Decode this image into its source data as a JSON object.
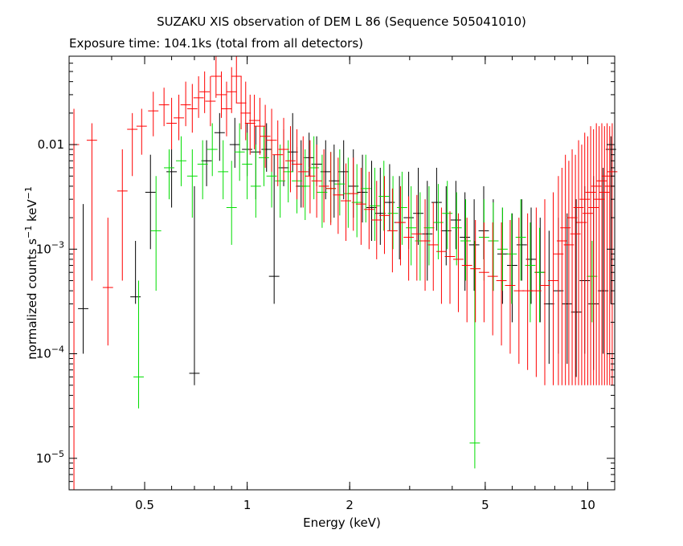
{
  "chart_data": {
    "type": "scatter",
    "title": "SUZAKU XIS observation of DEM L 86 (Sequence 505041010)",
    "subtitle": "Exposure time: 104.1ks (total from all detectors)",
    "xlabel": "Energy (keV)",
    "ylabel_main": "normalized counts s",
    "ylabel_mid": " keV",
    "ylabel_sup": "−1",
    "xscale": "log",
    "yscale": "log",
    "xlim": [
      0.3,
      12
    ],
    "ylim": [
      5e-06,
      0.07
    ],
    "x_ticks": [
      {
        "value": 0.5,
        "label": "0.5"
      },
      {
        "value": 1,
        "label": "1"
      },
      {
        "value": 2,
        "label": "2"
      },
      {
        "value": 5,
        "label": "5"
      },
      {
        "value": 10,
        "label": "10"
      }
    ],
    "y_ticks": [
      {
        "value": 0.01,
        "label": "0.01"
      },
      {
        "value": 0.001,
        "label": "10",
        "exp": "−3"
      },
      {
        "value": 0.0001,
        "label": "10",
        "exp": "−4"
      },
      {
        "value": 1e-05,
        "label": "10",
        "exp": "−5"
      }
    ],
    "series": [
      {
        "color": "#000000",
        "points": [
          [
            0.33,
            0.00027,
            0.0027,
            0.0001
          ],
          [
            0.47,
            0.00035,
            0.0012,
            0.0003
          ],
          [
            0.52,
            0.0035,
            0.008,
            0.001
          ],
          [
            0.6,
            0.0055,
            0.009,
            0.0025
          ],
          [
            0.7,
            6.5e-05,
            0.004,
            5e-05
          ],
          [
            0.76,
            0.007,
            0.011,
            0.004
          ],
          [
            0.83,
            0.013,
            0.02,
            0.007
          ],
          [
            0.92,
            0.01,
            0.018,
            0.006
          ],
          [
            1.0,
            0.009,
            0.016,
            0.005
          ],
          [
            1.06,
            0.0085,
            0.015,
            0.003
          ],
          [
            1.14,
            0.009,
            0.016,
            0.0055
          ],
          [
            1.2,
            0.00055,
            0.008,
            0.0003
          ],
          [
            1.28,
            0.006,
            0.014,
            0.004
          ],
          [
            1.36,
            0.0085,
            0.02,
            0.0055
          ],
          [
            1.44,
            0.004,
            0.011,
            0.0025
          ],
          [
            1.52,
            0.0075,
            0.013,
            0.005
          ],
          [
            1.6,
            0.0065,
            0.012,
            0.004
          ],
          [
            1.7,
            0.0055,
            0.011,
            0.003
          ],
          [
            1.8,
            0.0045,
            0.01,
            0.002
          ],
          [
            1.92,
            0.0055,
            0.011,
            0.003
          ],
          [
            2.05,
            0.004,
            0.009,
            0.002
          ],
          [
            2.18,
            0.0035,
            0.008,
            0.0018
          ],
          [
            2.32,
            0.0025,
            0.007,
            0.0012
          ],
          [
            2.46,
            0.0022,
            0.006,
            0.0011
          ],
          [
            2.62,
            0.0028,
            0.0065,
            0.0015
          ],
          [
            2.8,
            0.0018,
            0.005,
            0.0008
          ],
          [
            2.98,
            0.002,
            0.0055,
            0.001
          ],
          [
            3.18,
            0.0022,
            0.006,
            0.0011
          ],
          [
            3.38,
            0.0014,
            0.0045,
            0.0005
          ],
          [
            3.6,
            0.0028,
            0.006,
            0.0015
          ],
          [
            3.84,
            0.0015,
            0.004,
            0.0007
          ],
          [
            4.1,
            0.0019,
            0.0045,
            0.001
          ],
          [
            4.36,
            0.0013,
            0.0035,
            0.0004
          ],
          [
            4.64,
            0.0011,
            0.003,
            0.0004
          ],
          [
            4.95,
            0.0015,
            0.004,
            0.0008
          ],
          [
            5.28,
            0.0012,
            0.003,
            0.0004
          ],
          [
            5.62,
            0.0009,
            0.0025,
            0.0003
          ],
          [
            6.0,
            0.0007,
            0.0022,
            0.0002
          ],
          [
            6.4,
            0.0011,
            0.003,
            0.0005
          ],
          [
            6.82,
            0.0008,
            0.0025,
            0.0003
          ],
          [
            7.25,
            0.0006,
            0.002,
            0.0002
          ],
          [
            7.7,
            0.0003,
            0.0015,
            8e-05
          ],
          [
            8.2,
            0.0004,
            0.002,
            0.0001
          ],
          [
            8.7,
            0.0003,
            0.0022,
            8e-05
          ],
          [
            9.25,
            0.00025,
            0.003,
            6e-05
          ],
          [
            9.8,
            0.0005,
            0.004,
            0.0001
          ],
          [
            10.4,
            0.0003,
            0.005,
            7e-05
          ],
          [
            11.1,
            0.0004,
            0.006,
            0.0001
          ],
          [
            11.7,
            0.009,
            0.012,
            0.0003
          ]
        ]
      },
      {
        "color": "#00dd00",
        "points": [
          [
            0.48,
            6e-05,
            0.0005,
            3e-05
          ],
          [
            0.54,
            0.0015,
            0.005,
            0.0004
          ],
          [
            0.59,
            0.006,
            0.009,
            0.003
          ],
          [
            0.64,
            0.007,
            0.012,
            0.004
          ],
          [
            0.69,
            0.005,
            0.009,
            0.002
          ],
          [
            0.74,
            0.0065,
            0.011,
            0.003
          ],
          [
            0.79,
            0.009,
            0.016,
            0.005
          ],
          [
            0.85,
            0.0055,
            0.011,
            0.003
          ],
          [
            0.9,
            0.0025,
            0.007,
            0.0011
          ],
          [
            0.95,
            0.0085,
            0.016,
            0.0045
          ],
          [
            1.0,
            0.0065,
            0.013,
            0.003
          ],
          [
            1.06,
            0.004,
            0.01,
            0.002
          ],
          [
            1.12,
            0.0075,
            0.015,
            0.004
          ],
          [
            1.18,
            0.005,
            0.011,
            0.0025
          ],
          [
            1.25,
            0.0045,
            0.01,
            0.002
          ],
          [
            1.32,
            0.0055,
            0.011,
            0.0028
          ],
          [
            1.4,
            0.0045,
            0.0095,
            0.0022
          ],
          [
            1.48,
            0.004,
            0.009,
            0.0019
          ],
          [
            1.57,
            0.006,
            0.012,
            0.003
          ],
          [
            1.66,
            0.0035,
            0.008,
            0.0016
          ],
          [
            1.76,
            0.0038,
            0.0085,
            0.0018
          ],
          [
            1.87,
            0.0042,
            0.009,
            0.0021
          ],
          [
            1.98,
            0.0034,
            0.0075,
            0.0016
          ],
          [
            2.1,
            0.0028,
            0.0065,
            0.0013
          ],
          [
            2.23,
            0.0038,
            0.008,
            0.0018
          ],
          [
            2.37,
            0.0026,
            0.006,
            0.0012
          ],
          [
            2.52,
            0.0032,
            0.007,
            0.0015
          ],
          [
            2.68,
            0.0022,
            0.005,
            0.001
          ],
          [
            2.85,
            0.0025,
            0.0055,
            0.0011
          ],
          [
            3.03,
            0.0016,
            0.004,
            0.0007
          ],
          [
            3.22,
            0.0012,
            0.0035,
            0.0005
          ],
          [
            3.42,
            0.0016,
            0.004,
            0.0007
          ],
          [
            3.64,
            0.0018,
            0.0042,
            0.0008
          ],
          [
            3.87,
            0.0022,
            0.0045,
            0.001
          ],
          [
            4.12,
            0.0016,
            0.0035,
            0.0007
          ],
          [
            4.38,
            0.0012,
            0.003,
            0.0005
          ],
          [
            4.66,
            1.4e-05,
            0.0012,
            8e-06
          ],
          [
            4.96,
            0.0013,
            0.003,
            0.0005
          ],
          [
            5.28,
            0.0012,
            0.0028,
            0.0004
          ],
          [
            5.62,
            0.001,
            0.0025,
            0.0004
          ],
          [
            5.98,
            0.0009,
            0.0022,
            0.0003
          ],
          [
            6.36,
            0.0013,
            0.003,
            0.0005
          ],
          [
            6.78,
            0.0007,
            0.0018,
            0.0002
          ],
          [
            7.22,
            0.0006,
            0.0016,
            0.0002
          ],
          [
            10.3,
            0.00055,
            0.0012,
            0.0002
          ]
        ]
      },
      {
        "color": "#ff0000",
        "points": [
          [
            0.31,
            0.01,
            0.022,
            5e-06
          ],
          [
            0.35,
            0.011,
            0.016,
            0.0005
          ],
          [
            0.39,
            0.00043,
            0.002,
            0.00012
          ],
          [
            0.43,
            0.0036,
            0.009,
            0.0005
          ],
          [
            0.46,
            0.014,
            0.02,
            0.005
          ],
          [
            0.49,
            0.015,
            0.022,
            0.008
          ],
          [
            0.53,
            0.021,
            0.032,
            0.012
          ],
          [
            0.57,
            0.024,
            0.035,
            0.015
          ],
          [
            0.6,
            0.016,
            0.028,
            0.009
          ],
          [
            0.63,
            0.018,
            0.03,
            0.011
          ],
          [
            0.66,
            0.024,
            0.04,
            0.015
          ],
          [
            0.69,
            0.022,
            0.038,
            0.013
          ],
          [
            0.72,
            0.028,
            0.045,
            0.018
          ],
          [
            0.75,
            0.032,
            0.05,
            0.02
          ],
          [
            0.78,
            0.026,
            0.045,
            0.015
          ],
          [
            0.81,
            0.045,
            0.07,
            0.028
          ],
          [
            0.84,
            0.03,
            0.05,
            0.018
          ],
          [
            0.87,
            0.022,
            0.04,
            0.012
          ],
          [
            0.9,
            0.032,
            0.055,
            0.02
          ],
          [
            0.93,
            0.045,
            0.07,
            0.025
          ],
          [
            0.96,
            0.025,
            0.045,
            0.014
          ],
          [
            0.99,
            0.02,
            0.04,
            0.011
          ],
          [
            1.02,
            0.016,
            0.03,
            0.008
          ],
          [
            1.05,
            0.017,
            0.03,
            0.009
          ],
          [
            1.09,
            0.015,
            0.028,
            0.008
          ],
          [
            1.13,
            0.012,
            0.024,
            0.006
          ],
          [
            1.18,
            0.011,
            0.022,
            0.0055
          ],
          [
            1.23,
            0.008,
            0.017,
            0.004
          ],
          [
            1.28,
            0.009,
            0.018,
            0.0045
          ],
          [
            1.34,
            0.007,
            0.015,
            0.0035
          ],
          [
            1.4,
            0.0065,
            0.014,
            0.003
          ],
          [
            1.46,
            0.0055,
            0.012,
            0.0025
          ],
          [
            1.53,
            0.005,
            0.011,
            0.0022
          ],
          [
            1.6,
            0.0045,
            0.01,
            0.002
          ],
          [
            1.68,
            0.004,
            0.009,
            0.0018
          ],
          [
            1.76,
            0.0038,
            0.0085,
            0.0017
          ],
          [
            1.85,
            0.0033,
            0.0075,
            0.0014
          ],
          [
            1.95,
            0.0029,
            0.0066,
            0.0012
          ],
          [
            2.05,
            0.0034,
            0.0075,
            0.0015
          ],
          [
            2.16,
            0.0027,
            0.006,
            0.0011
          ],
          [
            2.28,
            0.0024,
            0.0055,
            0.001
          ],
          [
            2.4,
            0.0019,
            0.0045,
            0.0008
          ],
          [
            2.53,
            0.0021,
            0.005,
            0.0009
          ],
          [
            2.67,
            0.0015,
            0.0038,
            0.0006
          ],
          [
            2.82,
            0.0018,
            0.004,
            0.0007
          ],
          [
            2.98,
            0.0013,
            0.0032,
            0.0005
          ],
          [
            3.15,
            0.0014,
            0.0033,
            0.0005
          ],
          [
            3.33,
            0.0012,
            0.003,
            0.0004
          ],
          [
            3.52,
            0.0011,
            0.0028,
            0.0004
          ],
          [
            3.72,
            0.00095,
            0.0025,
            0.0003
          ],
          [
            3.94,
            0.00085,
            0.0023,
            0.0003
          ],
          [
            4.17,
            0.0008,
            0.0022,
            0.00025
          ],
          [
            4.42,
            0.0007,
            0.002,
            0.0002
          ],
          [
            4.68,
            0.00065,
            0.0019,
            0.0002
          ],
          [
            4.96,
            0.0006,
            0.0018,
            0.0002
          ],
          [
            5.26,
            0.00055,
            0.0018,
            0.00015
          ],
          [
            5.58,
            0.0005,
            0.0018,
            0.00012
          ],
          [
            5.92,
            0.00045,
            0.0019,
            0.0001
          ],
          [
            6.28,
            0.0004,
            0.002,
            8e-05
          ],
          [
            6.66,
            0.0004,
            0.0022,
            7e-05
          ],
          [
            7.06,
            0.0004,
            0.0025,
            6e-05
          ],
          [
            7.48,
            0.00045,
            0.003,
            5e-05
          ],
          [
            7.92,
            0.0005,
            0.0035,
            5e-05
          ],
          [
            8.2,
            0.0009,
            0.005,
            5e-05
          ],
          [
            8.4,
            0.0012,
            0.006,
            5e-05
          ],
          [
            8.6,
            0.0016,
            0.008,
            5e-05
          ],
          [
            8.8,
            0.0011,
            0.007,
            5e-05
          ],
          [
            9.0,
            0.002,
            0.009,
            5e-05
          ],
          [
            9.2,
            0.0014,
            0.008,
            5e-05
          ],
          [
            9.4,
            0.0025,
            0.011,
            5e-05
          ],
          [
            9.6,
            0.0018,
            0.01,
            5e-05
          ],
          [
            9.8,
            0.003,
            0.013,
            5e-05
          ],
          [
            10.0,
            0.0022,
            0.012,
            5e-05
          ],
          [
            10.2,
            0.0035,
            0.015,
            5e-05
          ],
          [
            10.4,
            0.0025,
            0.014,
            5e-05
          ],
          [
            10.6,
            0.004,
            0.016,
            5e-05
          ],
          [
            10.8,
            0.003,
            0.015,
            5e-05
          ],
          [
            11.0,
            0.0045,
            0.016,
            5e-05
          ],
          [
            11.2,
            0.0035,
            0.015,
            5e-05
          ],
          [
            11.4,
            0.005,
            0.016,
            5e-05
          ],
          [
            11.6,
            0.004,
            0.015,
            5e-05
          ],
          [
            11.8,
            0.0055,
            0.016,
            5e-05
          ]
        ]
      }
    ]
  }
}
